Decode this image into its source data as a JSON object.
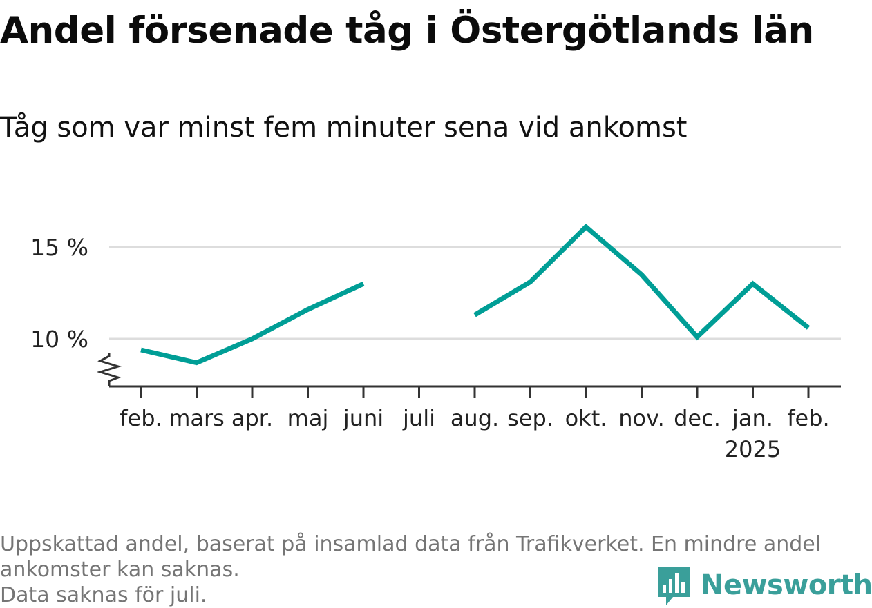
{
  "title": "Andel försenade tåg i Östergötlands län",
  "subtitle": "Tåg som var minst fem minuter sena vid ankomst",
  "footnote": {
    "line1": "Uppskattad andel, baserat på insamlad data från Trafikverket. En mindre andel",
    "line2": "ankomster kan saknas.",
    "line3": "Data saknas för juli."
  },
  "brand": {
    "name": "Newsworthy",
    "icon": "bar-chart-speech-bubble-icon",
    "color": "#3a9f9a"
  },
  "colors": {
    "line": "#009e96",
    "grid": "#dddddd",
    "axis": "#333333"
  },
  "chart_data": {
    "type": "line",
    "categories": [
      "feb.",
      "mars",
      "apr.",
      "maj",
      "juni",
      "juli",
      "aug.",
      "sep.",
      "okt.",
      "nov.",
      "dec.",
      "jan.",
      "feb."
    ],
    "year_label": {
      "category_index": 11,
      "text": "2025"
    },
    "series": [
      {
        "values": [
          9.4,
          8.7,
          10.0,
          11.6,
          13.0,
          null,
          11.3,
          13.1,
          16.1,
          13.5,
          10.1,
          13.0,
          10.6
        ]
      }
    ],
    "y_ticks": [
      {
        "value": 10,
        "label": "10 %"
      },
      {
        "value": 15,
        "label": "15 %"
      }
    ],
    "ylim": [
      7.5,
      16.5
    ],
    "y_axis_break": true,
    "grid": true,
    "xlabel": "",
    "ylabel": ""
  }
}
